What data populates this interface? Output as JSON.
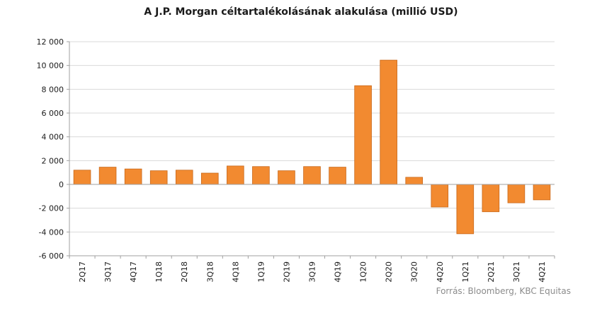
{
  "chart_data": {
    "type": "bar",
    "title": "A J.P. Morgan céltartalékolásának alakulása (millió USD)",
    "source": "Forrás: Bloomberg, KBC Equitas",
    "categories": [
      "2Q17",
      "3Q17",
      "4Q17",
      "1Q18",
      "2Q18",
      "3Q18",
      "4Q18",
      "1Q19",
      "2Q19",
      "3Q19",
      "4Q19",
      "1Q20",
      "2Q20",
      "3Q20",
      "4Q20",
      "1Q21",
      "2Q21",
      "3Q21",
      "4Q21"
    ],
    "values": [
      1200,
      1450,
      1300,
      1150,
      1200,
      950,
      1550,
      1500,
      1150,
      1500,
      1450,
      8300,
      10450,
      600,
      -1900,
      -4150,
      -2300,
      -1550,
      -1300
    ],
    "yticks": [
      12000,
      10000,
      8000,
      6000,
      4000,
      2000,
      0,
      -2000,
      -4000,
      -6000
    ],
    "ytick_labels": [
      "12 000",
      "10 000",
      "8 000",
      "6 000",
      "4 000",
      "2 000",
      "0",
      "-2 000",
      "-4 000",
      "-6 000"
    ],
    "ylim": [
      -6000,
      12000
    ],
    "grid": true,
    "legend": "none",
    "colors": {
      "bar": "#f28a30",
      "bar_edge": "#c8681a",
      "grid": "#d9d9d9",
      "axis": "#a0a0a0"
    }
  }
}
